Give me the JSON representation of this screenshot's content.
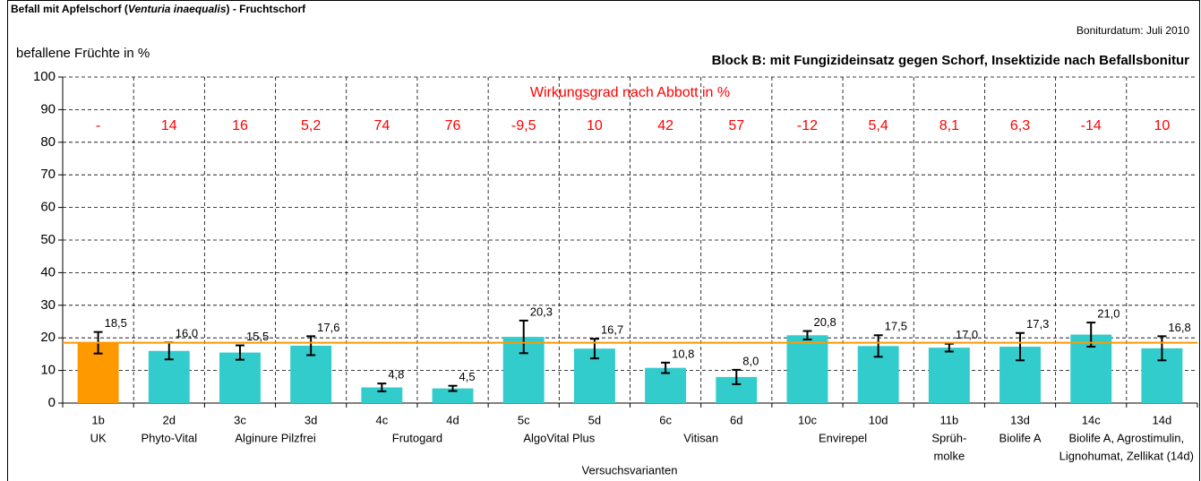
{
  "chart_data": {
    "type": "bar",
    "title_parts": [
      "Befall mit Apfelschorf (",
      "Venturia inaequalis",
      ") - Fruchtschorf"
    ],
    "date_note": "Boniturdatum: Juli 2010",
    "subtitle": "Block B: mit Fungizideinsatz gegen Schorf, Insektizide nach Befallsbonitur",
    "ylabel": "befallene Früchte in %",
    "xlabel": "Versuchsvarianten",
    "annotation": "Wirkungsgrad nach Abbott in %",
    "categories": [
      "1b",
      "2d",
      "3c",
      "3d",
      "4c",
      "4d",
      "5c",
      "5d",
      "6c",
      "6d",
      "10c",
      "10d",
      "11b",
      "13d",
      "14c",
      "14d"
    ],
    "category_groups": [
      {
        "lines": [
          "UK"
        ],
        "size": 1
      },
      {
        "lines": [
          "Phyto-Vital"
        ],
        "size": 1
      },
      {
        "lines": [
          "Alginure Pilzfrei"
        ],
        "size": 2
      },
      {
        "lines": [
          "Frutogard"
        ],
        "size": 2
      },
      {
        "lines": [
          "AlgoVital Plus"
        ],
        "size": 2
      },
      {
        "lines": [
          "Vitisan"
        ],
        "size": 2
      },
      {
        "lines": [
          "Envirepel"
        ],
        "size": 2
      },
      {
        "lines": [
          "Sprüh-",
          "molke"
        ],
        "size": 1
      },
      {
        "lines": [
          "Biolife A"
        ],
        "size": 1
      },
      {
        "lines": [
          "Biolife A, Agrostimulin,",
          "Lignohumat, Zellikat (14d)"
        ],
        "size": 2
      }
    ],
    "values": [
      18.5,
      16.0,
      15.5,
      17.6,
      4.8,
      4.5,
      20.3,
      16.7,
      10.8,
      8.0,
      20.8,
      17.5,
      17.0,
      17.3,
      21.0,
      16.8
    ],
    "value_labels": [
      "18,5",
      "16,0",
      "15,5",
      "17,6",
      "4,8",
      "4,5",
      "20,3",
      "16,7",
      "10,8",
      "8,0",
      "20,8",
      "17,5",
      "17,0",
      "17,3",
      "21,0",
      "16,8"
    ],
    "errors": [
      3.3,
      2.6,
      2.2,
      2.9,
      1.2,
      0.8,
      5,
      3,
      1.6,
      2.2,
      1.3,
      3.3,
      1.2,
      4.2,
      3.7,
      3.7
    ],
    "colors": [
      "#ff9900",
      "#33cccc",
      "#33cccc",
      "#33cccc",
      "#33cccc",
      "#33cccc",
      "#33cccc",
      "#33cccc",
      "#33cccc",
      "#33cccc",
      "#33cccc",
      "#33cccc",
      "#33cccc",
      "#33cccc",
      "#33cccc",
      "#33cccc"
    ],
    "reference_color": "#ff9900",
    "efficacy": [
      null,
      14,
      16,
      5.2,
      74,
      76,
      -9.5,
      10,
      42,
      57,
      -12,
      5.4,
      8.1,
      6.3,
      -14,
      10
    ],
    "efficacy_labels": [
      "-",
      "14",
      "16",
      "5,2",
      "74",
      "76",
      "-9,5",
      "10",
      "42",
      "57",
      "-12",
      "5,4",
      "8,1",
      "6,3",
      "-14",
      "10"
    ],
    "efficacy_color": "#ff0000",
    "ylim": [
      0,
      100
    ],
    "yticks": [
      0,
      10,
      20,
      30,
      40,
      50,
      60,
      70,
      80,
      90,
      100
    ],
    "grid": true
  }
}
